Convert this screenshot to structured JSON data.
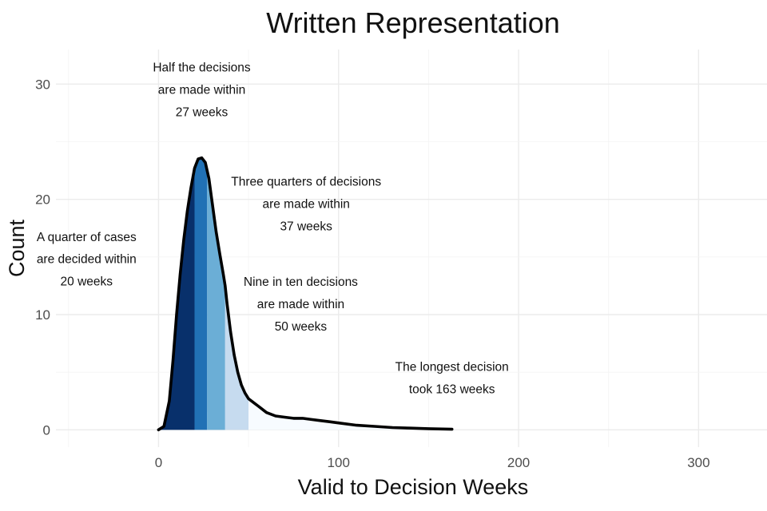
{
  "chart_data": {
    "type": "area",
    "title": "Written Representation",
    "xlabel": "Valid to Decision Weeks",
    "ylabel": "Count",
    "xlim": [
      -57,
      338
    ],
    "ylim": [
      -1.5,
      33
    ],
    "x_ticks": [
      0,
      100,
      200,
      300
    ],
    "x_tick_labels": [
      "0",
      "100",
      "200",
      "300"
    ],
    "y_ticks": [
      0,
      10,
      20,
      30
    ],
    "y_tick_labels": [
      "0",
      "10",
      "20",
      "30"
    ],
    "grid": true,
    "legend": "none",
    "density_curve": {
      "x": [
        0,
        3,
        6,
        8,
        10,
        12,
        14,
        16,
        18,
        20,
        22,
        24,
        26,
        28,
        30,
        32,
        34,
        36,
        37,
        38,
        40,
        42,
        44,
        46,
        48,
        50,
        55,
        60,
        65,
        70,
        75,
        80,
        85,
        90,
        95,
        100,
        110,
        120,
        130,
        140,
        150,
        163
      ],
      "y": [
        0,
        0.3,
        2.5,
        6,
        10,
        13.5,
        16.5,
        19,
        21,
        22.7,
        23.5,
        23.6,
        23.2,
        21.8,
        19.5,
        17.2,
        15.3,
        13.5,
        12.5,
        11,
        8.5,
        6.5,
        5,
        3.9,
        3.2,
        2.7,
        2.1,
        1.5,
        1.2,
        1.1,
        1.0,
        1.0,
        0.9,
        0.8,
        0.7,
        0.6,
        0.4,
        0.3,
        0.2,
        0.15,
        0.1,
        0.05
      ]
    },
    "quantile_bands": [
      {
        "from": 0,
        "to": 20,
        "color": "#08306b"
      },
      {
        "from": 20,
        "to": 27,
        "color": "#2171b5"
      },
      {
        "from": 27,
        "to": 37,
        "color": "#6baed6"
      },
      {
        "from": 37,
        "to": 50,
        "color": "#c6dbef"
      },
      {
        "from": 50,
        "to": 163,
        "color": "#f7fbff"
      }
    ],
    "curve_color": "#000000",
    "annotations": [
      {
        "x": -40,
        "y": 14.8,
        "lines": [
          "A quarter of cases",
          "are decided within",
          "20 weeks"
        ]
      },
      {
        "x": 24,
        "y": 29.5,
        "lines": [
          "Half the decisions",
          "are made within",
          "27 weeks"
        ]
      },
      {
        "x": 82,
        "y": 19.6,
        "lines": [
          "Three quarters of decisions",
          "are made within",
          "37 weeks"
        ]
      },
      {
        "x": 79,
        "y": 10.9,
        "lines": [
          "Nine in ten decisions",
          "are made within",
          "50 weeks"
        ]
      },
      {
        "x": 163,
        "y": 4.5,
        "lines": [
          "The longest decision",
          "took 163 weeks"
        ]
      }
    ]
  }
}
